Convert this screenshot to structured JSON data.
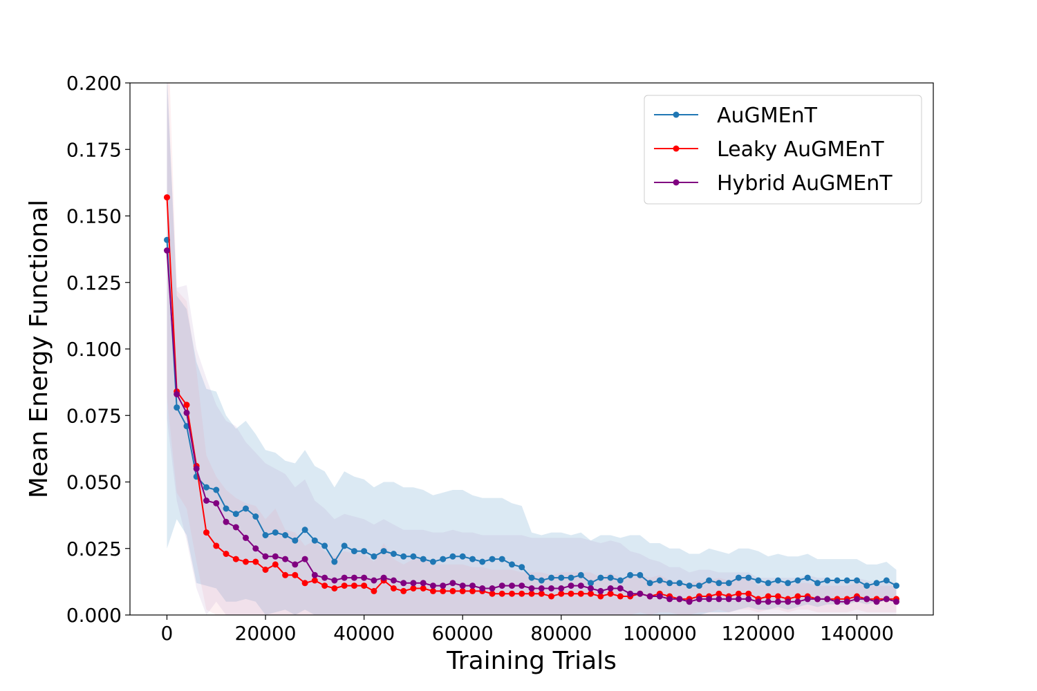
{
  "chart_data": {
    "type": "line",
    "title": "",
    "xlabel": "Training Trials",
    "ylabel": "Mean Energy Functional",
    "xlim": [
      -7500,
      155500
    ],
    "ylim": [
      0,
      0.2
    ],
    "xticks": [
      0,
      20000,
      40000,
      60000,
      80000,
      100000,
      120000,
      140000
    ],
    "yticks": [
      0.0,
      0.025,
      0.05,
      0.075,
      0.1,
      0.125,
      0.15,
      0.175,
      0.2
    ],
    "ytick_labels": [
      "0.000",
      "0.025",
      "0.050",
      "0.075",
      "0.100",
      "0.125",
      "0.150",
      "0.175",
      "0.200"
    ],
    "grid": false,
    "legend_position": "top-right",
    "x": [
      0,
      2000,
      4000,
      6000,
      8000,
      10000,
      12000,
      14000,
      16000,
      18000,
      20000,
      22000,
      24000,
      26000,
      28000,
      30000,
      32000,
      34000,
      36000,
      38000,
      40000,
      42000,
      44000,
      46000,
      48000,
      50000,
      52000,
      54000,
      56000,
      58000,
      60000,
      62000,
      64000,
      66000,
      68000,
      70000,
      72000,
      74000,
      76000,
      78000,
      80000,
      82000,
      84000,
      86000,
      88000,
      90000,
      92000,
      94000,
      96000,
      98000,
      100000,
      102000,
      104000,
      106000,
      108000,
      110000,
      112000,
      114000,
      116000,
      118000,
      120000,
      122000,
      124000,
      126000,
      128000,
      130000,
      132000,
      134000,
      136000,
      138000,
      140000,
      142000,
      144000,
      146000,
      148000
    ],
    "series": [
      {
        "name": "AuGMEnT",
        "color": "#1f77b4",
        "band_color": "#1f77b4",
        "values": [
          0.141,
          0.078,
          0.071,
          0.052,
          0.048,
          0.047,
          0.04,
          0.038,
          0.04,
          0.037,
          0.03,
          0.031,
          0.03,
          0.028,
          0.032,
          0.028,
          0.026,
          0.02,
          0.026,
          0.024,
          0.024,
          0.022,
          0.024,
          0.023,
          0.022,
          0.022,
          0.021,
          0.02,
          0.021,
          0.022,
          0.022,
          0.021,
          0.02,
          0.021,
          0.021,
          0.019,
          0.018,
          0.014,
          0.013,
          0.014,
          0.014,
          0.014,
          0.015,
          0.012,
          0.014,
          0.014,
          0.013,
          0.015,
          0.015,
          0.012,
          0.013,
          0.012,
          0.012,
          0.011,
          0.011,
          0.013,
          0.012,
          0.012,
          0.014,
          0.014,
          0.013,
          0.012,
          0.013,
          0.012,
          0.013,
          0.014,
          0.012,
          0.013,
          0.013,
          0.013,
          0.013,
          0.011,
          0.012,
          0.013,
          0.011
        ],
        "upper": [
          0.205,
          0.12,
          0.115,
          0.095,
          0.085,
          0.084,
          0.075,
          0.07,
          0.073,
          0.068,
          0.062,
          0.061,
          0.058,
          0.057,
          0.062,
          0.056,
          0.054,
          0.048,
          0.054,
          0.052,
          0.051,
          0.048,
          0.05,
          0.05,
          0.048,
          0.048,
          0.047,
          0.045,
          0.046,
          0.047,
          0.047,
          0.045,
          0.044,
          0.044,
          0.044,
          0.042,
          0.041,
          0.031,
          0.03,
          0.031,
          0.031,
          0.03,
          0.031,
          0.028,
          0.03,
          0.03,
          0.029,
          0.03,
          0.03,
          0.027,
          0.027,
          0.025,
          0.025,
          0.023,
          0.023,
          0.025,
          0.024,
          0.023,
          0.025,
          0.025,
          0.024,
          0.022,
          0.023,
          0.022,
          0.022,
          0.023,
          0.021,
          0.021,
          0.021,
          0.021,
          0.021,
          0.019,
          0.019,
          0.02,
          0.017
        ],
        "lower": [
          0.025,
          0.036,
          0.03,
          0.012,
          0.011,
          0.01,
          0.005,
          0.005,
          0.006,
          0.005,
          0.0,
          0.001,
          0.002,
          0.0,
          0.002,
          0.0,
          0.0,
          0.0,
          0.0,
          0.0,
          0.0,
          0.0,
          0.0,
          0.0,
          0.0,
          0.0,
          0.0,
          0.0,
          0.0,
          0.0,
          0.0,
          0.0,
          0.0,
          0.0,
          0.0,
          0.0,
          0.0,
          0.0,
          0.0,
          0.0,
          0.0,
          0.0,
          0.0,
          0.0,
          0.0,
          0.0,
          0.0,
          0.0,
          0.0,
          0.0,
          0.0,
          0.0,
          0.0,
          0.0,
          0.0,
          0.001,
          0.001,
          0.001,
          0.002,
          0.003,
          0.002,
          0.002,
          0.003,
          0.002,
          0.003,
          0.004,
          0.003,
          0.004,
          0.004,
          0.004,
          0.005,
          0.004,
          0.005,
          0.006,
          0.005
        ]
      },
      {
        "name": "Leaky AuGMEnT",
        "color": "#ff0000",
        "band_color": "#f4a0ae",
        "values": [
          0.157,
          0.084,
          0.079,
          0.056,
          0.031,
          0.026,
          0.023,
          0.021,
          0.02,
          0.02,
          0.017,
          0.019,
          0.015,
          0.015,
          0.012,
          0.013,
          0.011,
          0.01,
          0.011,
          0.011,
          0.011,
          0.009,
          0.013,
          0.01,
          0.009,
          0.01,
          0.01,
          0.009,
          0.009,
          0.009,
          0.009,
          0.009,
          0.009,
          0.008,
          0.008,
          0.008,
          0.008,
          0.008,
          0.008,
          0.007,
          0.008,
          0.008,
          0.008,
          0.008,
          0.007,
          0.008,
          0.007,
          0.007,
          0.008,
          0.007,
          0.008,
          0.007,
          0.006,
          0.006,
          0.007,
          0.007,
          0.008,
          0.007,
          0.008,
          0.008,
          0.006,
          0.007,
          0.007,
          0.006,
          0.007,
          0.007,
          0.006,
          0.006,
          0.006,
          0.006,
          0.007,
          0.006,
          0.006,
          0.006,
          0.006
        ],
        "upper": [
          0.232,
          0.122,
          0.118,
          0.092,
          0.06,
          0.052,
          0.047,
          0.044,
          0.042,
          0.041,
          0.036,
          0.04,
          0.032,
          0.031,
          0.026,
          0.028,
          0.024,
          0.022,
          0.024,
          0.023,
          0.023,
          0.02,
          0.027,
          0.021,
          0.019,
          0.021,
          0.021,
          0.019,
          0.019,
          0.019,
          0.019,
          0.018,
          0.018,
          0.017,
          0.017,
          0.017,
          0.016,
          0.016,
          0.016,
          0.015,
          0.016,
          0.016,
          0.016,
          0.016,
          0.014,
          0.016,
          0.014,
          0.014,
          0.015,
          0.014,
          0.015,
          0.013,
          0.012,
          0.012,
          0.013,
          0.013,
          0.014,
          0.013,
          0.014,
          0.014,
          0.011,
          0.012,
          0.012,
          0.011,
          0.012,
          0.012,
          0.011,
          0.011,
          0.011,
          0.011,
          0.012,
          0.011,
          0.011,
          0.011,
          0.011
        ],
        "lower": [
          0.082,
          0.046,
          0.04,
          0.02,
          0.002,
          0.0,
          0.0,
          0.0,
          0.0,
          0.0,
          0.0,
          0.0,
          0.0,
          0.0,
          0.0,
          0.0,
          0.0,
          0.0,
          0.0,
          0.0,
          0.0,
          0.0,
          0.0,
          0.0,
          0.0,
          0.0,
          0.0,
          0.0,
          0.0,
          0.0,
          0.0,
          0.0,
          0.0,
          0.0,
          0.0,
          0.0,
          0.0,
          0.0,
          0.0,
          0.0,
          0.0,
          0.0,
          0.0,
          0.0,
          0.0,
          0.0,
          0.0,
          0.0,
          0.001,
          0.0,
          0.001,
          0.001,
          0.0,
          0.0,
          0.001,
          0.001,
          0.002,
          0.001,
          0.002,
          0.002,
          0.001,
          0.002,
          0.002,
          0.001,
          0.002,
          0.002,
          0.001,
          0.001,
          0.001,
          0.001,
          0.002,
          0.001,
          0.001,
          0.001,
          0.001
        ]
      },
      {
        "name": "Hybrid AuGMEnT",
        "color": "#800080",
        "band_color": "#b794c6",
        "values": [
          0.137,
          0.083,
          0.076,
          0.055,
          0.043,
          0.042,
          0.035,
          0.033,
          0.029,
          0.025,
          0.022,
          0.022,
          0.021,
          0.019,
          0.021,
          0.015,
          0.014,
          0.013,
          0.014,
          0.014,
          0.014,
          0.013,
          0.014,
          0.013,
          0.012,
          0.012,
          0.012,
          0.011,
          0.011,
          0.012,
          0.011,
          0.011,
          0.01,
          0.01,
          0.011,
          0.011,
          0.011,
          0.01,
          0.01,
          0.01,
          0.01,
          0.011,
          0.011,
          0.01,
          0.009,
          0.01,
          0.01,
          0.008,
          0.008,
          0.007,
          0.007,
          0.006,
          0.006,
          0.005,
          0.006,
          0.006,
          0.006,
          0.006,
          0.006,
          0.006,
          0.005,
          0.005,
          0.005,
          0.005,
          0.005,
          0.006,
          0.006,
          0.006,
          0.005,
          0.005,
          0.006,
          0.006,
          0.005,
          0.006,
          0.005
        ],
        "upper": [
          0.2,
          0.123,
          0.124,
          0.1,
          0.089,
          0.079,
          0.073,
          0.071,
          0.065,
          0.061,
          0.057,
          0.055,
          0.053,
          0.048,
          0.051,
          0.043,
          0.04,
          0.036,
          0.038,
          0.037,
          0.036,
          0.034,
          0.036,
          0.034,
          0.032,
          0.032,
          0.032,
          0.031,
          0.031,
          0.032,
          0.031,
          0.031,
          0.03,
          0.03,
          0.03,
          0.03,
          0.03,
          0.029,
          0.029,
          0.029,
          0.029,
          0.029,
          0.029,
          0.028,
          0.027,
          0.028,
          0.027,
          0.024,
          0.023,
          0.021,
          0.02,
          0.018,
          0.018,
          0.016,
          0.017,
          0.017,
          0.016,
          0.016,
          0.016,
          0.016,
          0.014,
          0.014,
          0.014,
          0.014,
          0.014,
          0.015,
          0.014,
          0.014,
          0.013,
          0.013,
          0.014,
          0.013,
          0.012,
          0.013,
          0.012
        ],
        "lower": [
          0.074,
          0.043,
          0.028,
          0.01,
          0.0,
          0.005,
          0.0,
          0.0,
          0.0,
          0.0,
          0.0,
          0.0,
          0.0,
          0.0,
          0.0,
          0.0,
          0.0,
          0.0,
          0.0,
          0.0,
          0.0,
          0.0,
          0.0,
          0.0,
          0.0,
          0.0,
          0.0,
          0.0,
          0.0,
          0.0,
          0.0,
          0.0,
          0.0,
          0.0,
          0.0,
          0.0,
          0.0,
          0.0,
          0.0,
          0.0,
          0.0,
          0.0,
          0.0,
          0.0,
          0.0,
          0.0,
          0.0,
          0.0,
          0.0,
          0.0,
          0.0,
          0.0,
          0.0,
          0.0,
          0.0,
          0.0,
          0.0,
          0.0,
          0.0,
          0.0,
          0.0,
          0.0,
          0.0,
          0.0,
          0.0,
          0.0,
          0.0,
          0.0,
          0.0,
          0.0,
          0.0,
          0.0,
          0.0,
          0.0,
          0.0
        ]
      }
    ]
  }
}
